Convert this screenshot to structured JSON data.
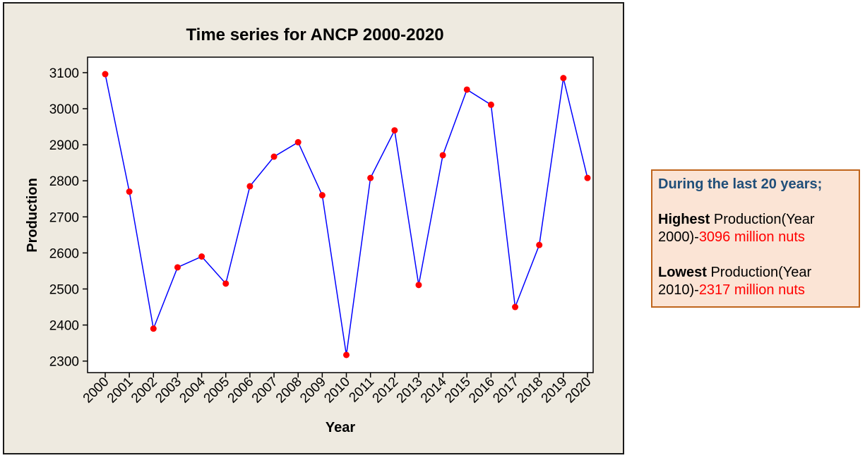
{
  "chart_data": {
    "type": "line",
    "title": "Time series for ANCP 2000-2020",
    "xlabel": "Year",
    "ylabel": "Production",
    "x": [
      "2000",
      "2001",
      "2002",
      "2003",
      "2004",
      "2005",
      "2006",
      "2007",
      "2008",
      "2009",
      "2010",
      "2011",
      "2012",
      "2013",
      "2014",
      "2015",
      "2016",
      "2017",
      "2018",
      "2019",
      "2020"
    ],
    "series": [
      {
        "values": [
          3096,
          2770,
          2390,
          2560,
          2590,
          2515,
          2785,
          2867,
          2907,
          2760,
          2317,
          2808,
          2940,
          2511,
          2871,
          3053,
          3011,
          2450,
          2622,
          3085,
          2808
        ]
      }
    ],
    "yticks": [
      2300,
      2400,
      2500,
      2600,
      2700,
      2800,
      2900,
      3000,
      3100
    ],
    "ylim": [
      2268,
      3143
    ],
    "grid": false,
    "legend": "none",
    "line_color": "#0000ff",
    "marker_color": "#ff0000",
    "plot_background": "#ffffff",
    "frame_background": "#eeeae0"
  },
  "info": {
    "heading": "During the last 20 years;",
    "highest_label": "Highest",
    "highest_text": " Production(Year 2000)-",
    "highest_value": "3096 million nuts",
    "lowest_label": "Lowest",
    "lowest_text": " Production(Year 2010)-",
    "lowest_value": "2317 million nuts",
    "accent_color": "#1f4e79",
    "value_color": "#ff0000",
    "box_background": "#fbe4d5",
    "box_border": "#c0651c"
  }
}
